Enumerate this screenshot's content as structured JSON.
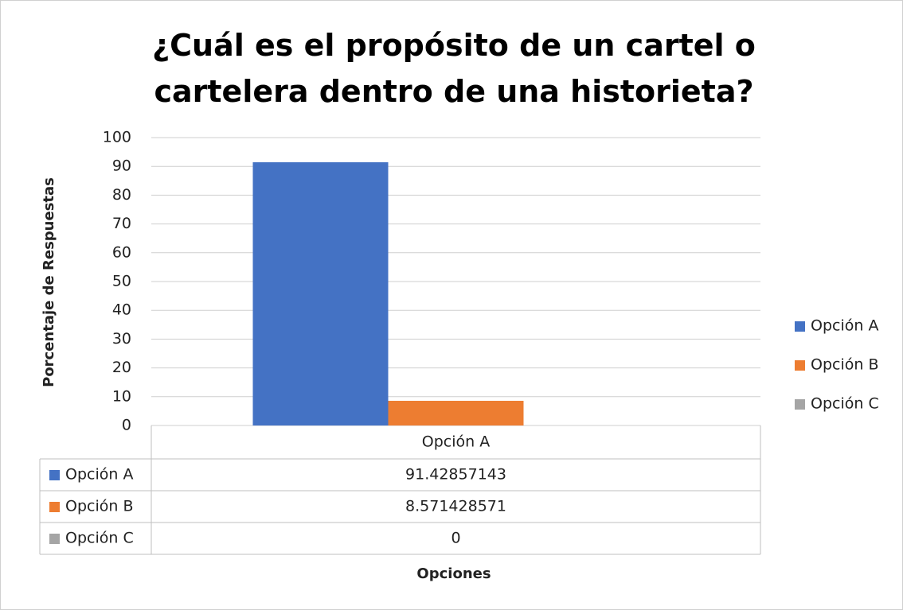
{
  "chart_data": {
    "type": "bar",
    "title": "¿Cuál es el propósito de un cartel o cartelera dentro de una historieta?",
    "y_label": "Porcentaje de Respuestas",
    "x_label": "Opciones",
    "categories": [
      "Opción A"
    ],
    "series": [
      {
        "name": "Opción A",
        "color": "#4472c4",
        "values": [
          91.42857143
        ]
      },
      {
        "name": "Opción B",
        "color": "#ed7d31",
        "values": [
          8.571428571
        ]
      },
      {
        "name": "Opción C",
        "color": "#a5a5a5",
        "values": [
          0
        ]
      }
    ],
    "ylim": [
      0,
      100
    ],
    "yticks": [
      0,
      10,
      20,
      30,
      40,
      50,
      60,
      70,
      80,
      90,
      100
    ],
    "grid": true,
    "legend": "right",
    "data_table": true
  }
}
